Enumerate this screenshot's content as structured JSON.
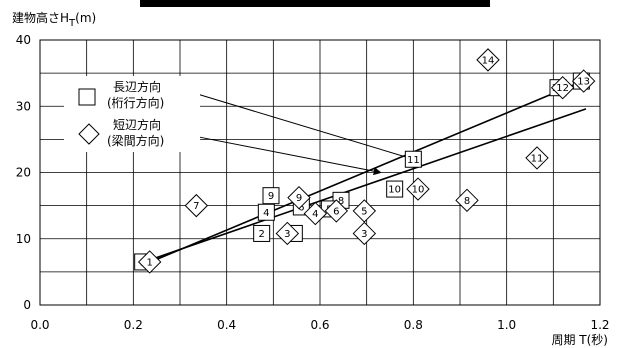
{
  "chart_data": {
    "type": "scatter",
    "title": "",
    "ylabel": "建物高さH",
    "ylabel_sub": "T",
    "ylabel_unit": "(m)",
    "xlabel": "周期 T(秒)",
    "xlim": [
      0,
      1.2
    ],
    "ylim": [
      0,
      40
    ],
    "xticks": [
      "0.0",
      "0.2",
      "0.4",
      "0.6",
      "0.8",
      "1.0",
      "1.2"
    ],
    "yticks": [
      "0",
      "10",
      "20",
      "30",
      "40"
    ],
    "grid": true,
    "legend_position": "upper-left",
    "series": [
      {
        "name": "長辺方向",
        "name_sub": "(桁行方向)",
        "marker": "square",
        "points": [
          {
            "label": "1",
            "x": 0.22,
            "y": 6.5
          },
          {
            "label": "2",
            "x": 0.475,
            "y": 10.8
          },
          {
            "label": "3",
            "x": 0.545,
            "y": 10.8
          },
          {
            "label": "4",
            "x": 0.485,
            "y": 14.0
          },
          {
            "label": "9",
            "x": 0.495,
            "y": 16.5
          },
          {
            "label": "6",
            "x": 0.56,
            "y": 14.8
          },
          {
            "label": "8",
            "x": 0.645,
            "y": 15.8
          },
          {
            "label": "5",
            "x": 0.62,
            "y": 14.5
          },
          {
            "label": "10",
            "x": 0.76,
            "y": 17.5
          },
          {
            "label": "11",
            "x": 0.8,
            "y": 22.0
          },
          {
            "label": "12",
            "x": 1.11,
            "y": 32.8
          },
          {
            "label": "13",
            "x": 1.16,
            "y": 33.8
          }
        ]
      },
      {
        "name": "短辺方向",
        "name_sub": "(梁間方向)",
        "marker": "diamond",
        "points": [
          {
            "label": "1",
            "x": 0.235,
            "y": 6.5
          },
          {
            "label": "7",
            "x": 0.335,
            "y": 15.0
          },
          {
            "label": "3",
            "x": 0.53,
            "y": 10.8
          },
          {
            "label": "9",
            "x": 0.555,
            "y": 16.2
          },
          {
            "label": "4",
            "x": 0.59,
            "y": 13.8
          },
          {
            "label": "6",
            "x": 0.635,
            "y": 14.2
          },
          {
            "label": "5",
            "x": 0.695,
            "y": 14.2
          },
          {
            "label": "3",
            "x": 0.695,
            "y": 10.8
          },
          {
            "label": "10",
            "x": 0.81,
            "y": 17.5
          },
          {
            "label": "8",
            "x": 0.915,
            "y": 15.8
          },
          {
            "label": "11",
            "x": 1.065,
            "y": 22.2
          },
          {
            "label": "14",
            "x": 0.96,
            "y": 37.0
          },
          {
            "label": "12",
            "x": 1.12,
            "y": 32.8
          },
          {
            "label": "13",
            "x": 1.165,
            "y": 33.8
          }
        ]
      }
    ],
    "lines": [
      {
        "x": [
          0.22,
          1.17
        ],
        "y": [
          6.0,
          34.0
        ]
      },
      {
        "x": [
          0.235,
          1.17
        ],
        "y": [
          6.8,
          29.6
        ]
      }
    ],
    "annotation_arrows": [
      {
        "from": [
          0.33,
          32.0
        ],
        "to": [
          0.8,
          22.0
        ]
      },
      {
        "from": [
          0.33,
          25.5
        ],
        "to": [
          0.73,
          20.0
        ]
      }
    ]
  }
}
